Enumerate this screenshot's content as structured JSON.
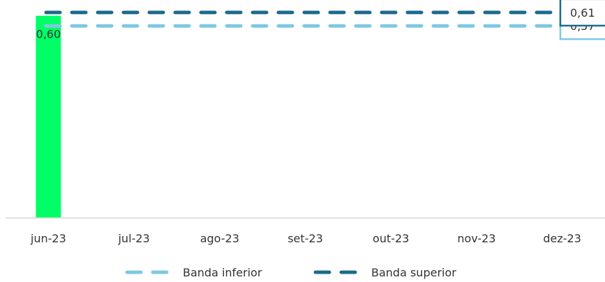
{
  "chart_data": {
    "type": "bar",
    "categories": [
      "jun-23",
      "jul-23",
      "ago-23",
      "set-23",
      "out-23",
      "nov-23",
      "dez-23"
    ],
    "series": [
      {
        "values": [
          0.6,
          null,
          null,
          null,
          null,
          null,
          null
        ],
        "color": "#00ff66",
        "data_labels": [
          "0,60",
          "",
          "",
          "",
          "",
          "",
          ""
        ]
      }
    ],
    "reference_lines": [
      {
        "name": "Banda inferior",
        "value": 0.57,
        "label": "0,57",
        "color": "#7ec8e3",
        "style": "dashed"
      },
      {
        "name": "Banda superior",
        "value": 0.61,
        "label": "0,61",
        "color": "#1b6a8c",
        "style": "dashed"
      }
    ],
    "ylim": [
      0,
      0.62
    ],
    "legend_position": "bottom",
    "grid": false,
    "title": "",
    "xlabel": "",
    "ylabel": ""
  }
}
